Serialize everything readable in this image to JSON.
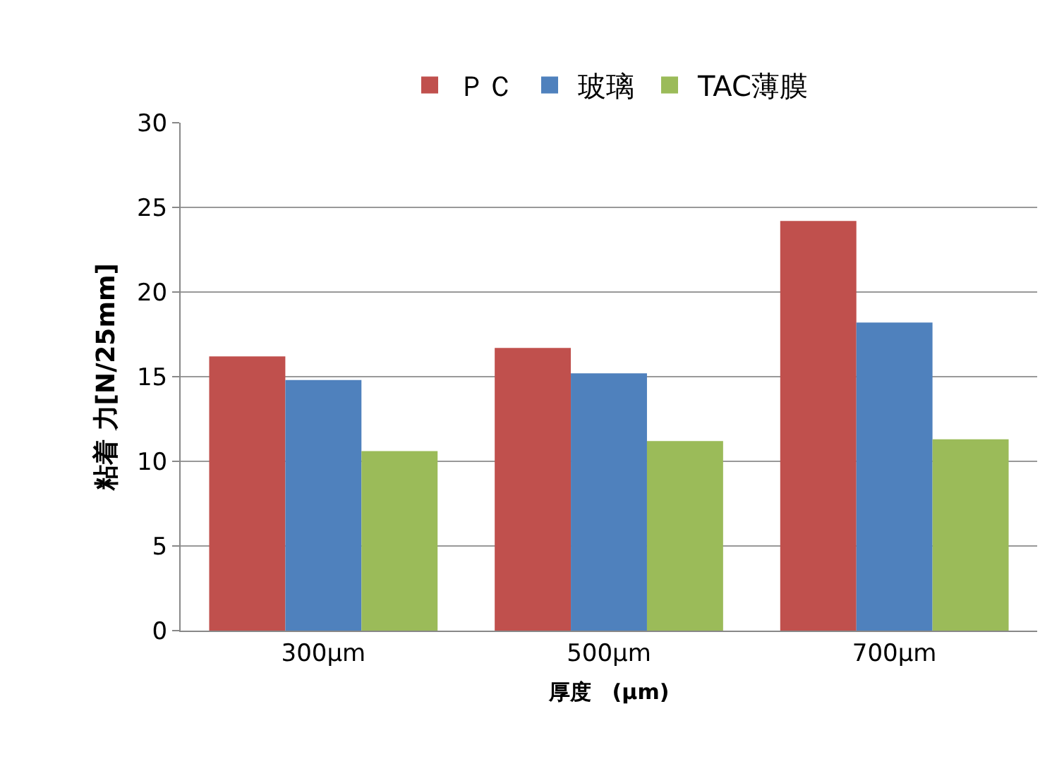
{
  "chart_data": {
    "type": "bar",
    "xlabel": "厚度　(μm)",
    "ylabel": "粘着 力[N/25mm]",
    "categories": [
      "300μm",
      "500μm",
      "700μm"
    ],
    "series": [
      {
        "name": "ＰＣ",
        "color": "#c0504d",
        "values": [
          16.2,
          16.7,
          24.2
        ]
      },
      {
        "name": "玻璃",
        "color": "#4f81bd",
        "values": [
          14.8,
          15.2,
          18.2
        ]
      },
      {
        "name": "TAC薄膜",
        "color": "#9bbb59",
        "values": [
          10.6,
          11.2,
          11.3
        ]
      }
    ],
    "ylim": [
      0,
      30
    ],
    "yticks": [
      0,
      5,
      10,
      15,
      20,
      25,
      30
    ],
    "grid": "y",
    "legend": "top"
  }
}
